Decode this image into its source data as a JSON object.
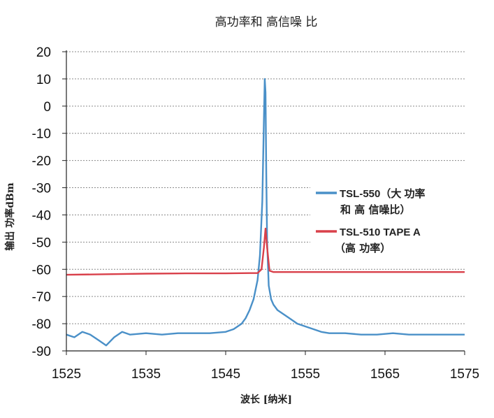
{
  "chart_data": {
    "type": "line",
    "title": "高功率和 高信噪 比",
    "xlabel": "波长 [纳米]",
    "ylabel": "输出 功率dBm",
    "xlim": [
      1525,
      1575
    ],
    "ylim": [
      -90,
      20
    ],
    "x_ticks": [
      "1525",
      "1535",
      "1545",
      "1555",
      "1565",
      "1575"
    ],
    "y_ticks": [
      "20",
      "10",
      "0",
      "-10",
      "-20",
      "-30",
      "-40",
      "-50",
      "-60",
      "-70",
      "-80",
      "-90"
    ],
    "grid": "horizontal dotted",
    "legend_position": "right",
    "series": [
      {
        "name": "TSL-550（大 功率 和 高 信噪比）",
        "legend_lines": [
          "TSL-550（大 功率",
          "和 高 信噪比）"
        ],
        "color": "#4a90c8",
        "x": [
          1525,
          1526,
          1527,
          1528,
          1529,
          1530,
          1531,
          1532,
          1533,
          1535,
          1537,
          1539,
          1541,
          1543,
          1545,
          1546,
          1547,
          1547.5,
          1548,
          1548.5,
          1549,
          1549.3,
          1549.6,
          1549.8,
          1549.9,
          1550.0,
          1550.1,
          1550.2,
          1550.4,
          1550.7,
          1551,
          1551.5,
          1552,
          1552.5,
          1553,
          1554,
          1555,
          1556,
          1557,
          1558,
          1560,
          1562,
          1564,
          1566,
          1568,
          1570,
          1572,
          1575
        ],
        "y": [
          -84,
          -85,
          -83,
          -84,
          -86,
          -88,
          -85,
          -83,
          -84,
          -83.5,
          -84,
          -83.5,
          -83.5,
          -83.5,
          -83,
          -82,
          -80,
          -78,
          -75,
          -71,
          -64,
          -55,
          -35,
          -5,
          10,
          5,
          -25,
          -50,
          -66,
          -71,
          -73,
          -75,
          -76,
          -77,
          -78,
          -80,
          -81,
          -82,
          -83,
          -83.5,
          -83.5,
          -84,
          -84,
          -83.5,
          -84,
          -84,
          -84,
          -84
        ]
      },
      {
        "name": "TSL-510 TAPE A（高 功率）",
        "legend_lines": [
          "TSL-510 TAPE A",
          "（高 功率）"
        ],
        "color": "#d9404a",
        "x": [
          1525,
          1530,
          1535,
          1540,
          1545,
          1548,
          1549,
          1549.5,
          1549.8,
          1550.0,
          1550.2,
          1550.5,
          1551,
          1552,
          1555,
          1560,
          1565,
          1570,
          1575
        ],
        "y": [
          -62,
          -61.8,
          -61.6,
          -61.5,
          -61.5,
          -61.4,
          -61.4,
          -60,
          -52,
          -45,
          -52,
          -60.5,
          -61,
          -61,
          -61,
          -61,
          -61,
          -61,
          -61
        ]
      }
    ]
  }
}
